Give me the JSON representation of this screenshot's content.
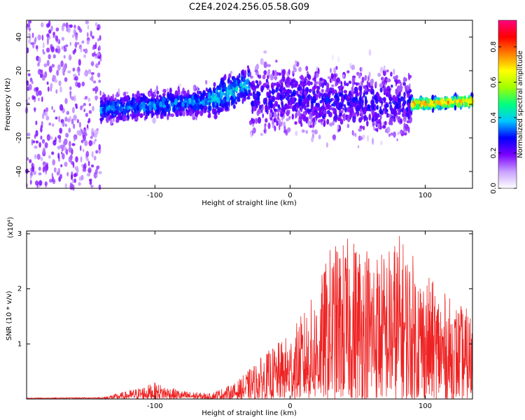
{
  "figure": {
    "title": "C2E4.2024.256.05.58.G09"
  },
  "chart_data": [
    {
      "type": "heatmap",
      "xlabel": "Height of straight line (km)",
      "ylabel": "Frequency (Hz)",
      "xlim": [
        -195,
        135
      ],
      "ylim": [
        -50,
        50
      ],
      "xticks": [
        -100,
        0,
        100
      ],
      "yticks": [
        -40,
        -20,
        0,
        20,
        40
      ],
      "colorbar": {
        "label": "Normalized spectral amplitude",
        "range": [
          0,
          0.95
        ],
        "ticks": [
          0.0,
          0.2,
          0.4,
          0.6,
          0.8
        ],
        "colormap": [
          "#ffffff",
          "#c8a0ff",
          "#7a00ff",
          "#0000ff",
          "#00c8ff",
          "#00ff80",
          "#a0ff00",
          "#ffff00",
          "#ff8000",
          "#ff0000",
          "#ff0080"
        ]
      },
      "regions": [
        {
          "x": [
            -195,
            -140
          ],
          "spread": 50,
          "level": 0.08,
          "note": "broadband noise"
        },
        {
          "x": [
            -140,
            -60
          ],
          "center_start": -3,
          "center_end": 2,
          "spread": 8,
          "level": 0.35
        },
        {
          "x": [
            -60,
            -30
          ],
          "center_start": 2,
          "center_end": 12,
          "spread": 10,
          "level": 0.4
        },
        {
          "x": [
            -30,
            90
          ],
          "center_start": 5,
          "center_end": 0,
          "spread": 20,
          "level": 0.25
        },
        {
          "x": [
            90,
            135
          ],
          "center_start": 0,
          "center_end": 2,
          "spread": 3,
          "level": 0.75
        }
      ]
    },
    {
      "type": "line",
      "xlabel": "Height of straight line (km)",
      "ylabel": "SNR (10 * v/v)",
      "yscale_label": "(x10⁴)",
      "xlim": [
        -195,
        135
      ],
      "ylim": [
        0,
        3.05
      ],
      "xticks": [
        -100,
        0,
        100
      ],
      "yticks": [
        1,
        2,
        3
      ],
      "color": "#ee2222",
      "envelope": [
        {
          "x": -195,
          "y": 0.02
        },
        {
          "x": -140,
          "y": 0.03
        },
        {
          "x": -120,
          "y": 0.15
        },
        {
          "x": -100,
          "y": 0.3
        },
        {
          "x": -80,
          "y": 0.15
        },
        {
          "x": -60,
          "y": 0.1
        },
        {
          "x": -40,
          "y": 0.3
        },
        {
          "x": -20,
          "y": 0.8
        },
        {
          "x": 0,
          "y": 1.2
        },
        {
          "x": 10,
          "y": 1.6
        },
        {
          "x": 20,
          "y": 2.0
        },
        {
          "x": 30,
          "y": 2.8
        },
        {
          "x": 50,
          "y": 3.0
        },
        {
          "x": 70,
          "y": 2.7
        },
        {
          "x": 80,
          "y": 3.05
        },
        {
          "x": 100,
          "y": 2.3
        },
        {
          "x": 120,
          "y": 1.8
        },
        {
          "x": 135,
          "y": 1.6
        }
      ]
    }
  ]
}
